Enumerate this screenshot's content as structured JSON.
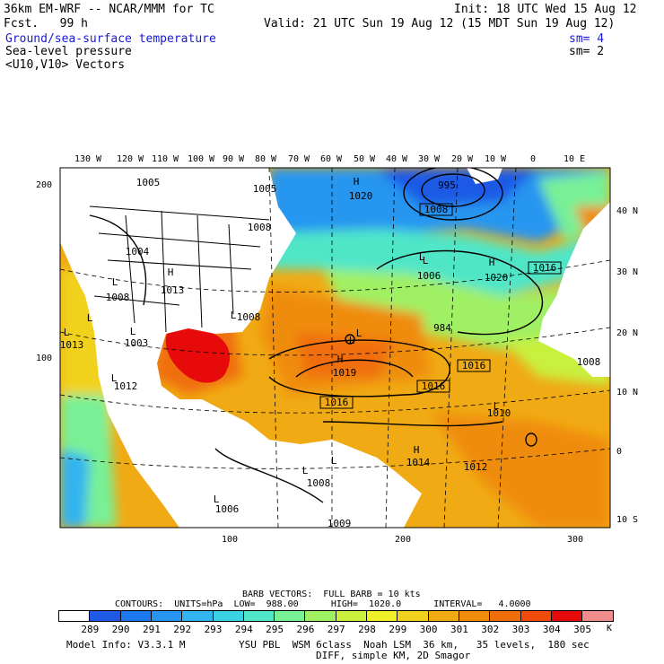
{
  "header": {
    "model_line": "36km EM-WRF -- NCAR/MMM for TC",
    "fcst_line": "Fcst.   99 h",
    "init_line": "Init: 18 UTC Wed 15 Aug 12",
    "valid_line": "Valid: 21 UTC Sun 19 Aug 12 (15 MDT Sun 19 Aug 12)",
    "field1": "Ground/sea-surface temperature",
    "field1_sm": "sm= 4",
    "field2": "Sea-level pressure",
    "field2_sm": "sm= 2",
    "field3": "<U10,V10> Vectors"
  },
  "colors": {
    "field1_text": "#1a1ad0"
  },
  "lon_labels": [
    "130 W",
    "120 W",
    "110 W",
    "100 W",
    "90 W",
    "80 W",
    "70 W",
    "60 W",
    "50 W",
    "40 W",
    "30 W",
    "20 W",
    "10 W",
    "0",
    "10 E"
  ],
  "lat_labels": [
    "40 N",
    "30 N",
    "20 N",
    "10 N",
    "0",
    "10 S"
  ],
  "left_ticks": [
    "200",
    "100"
  ],
  "bottom_ticks": [
    "100",
    "200",
    "300"
  ],
  "pressure_labels": [
    "1005",
    "1005",
    "1008",
    "1020",
    "995",
    "1008",
    "1004",
    "1006",
    "1020",
    "1016",
    "1008",
    "1008",
    "1013",
    "1013",
    "1003",
    "984",
    "1019",
    "1016",
    "1012",
    "1016",
    "1016",
    "1010",
    "1008",
    "1014",
    "1012",
    "1008",
    "1006",
    "1009"
  ],
  "system_labels": [
    "L",
    "H",
    "L",
    "H",
    "L",
    "H",
    "L",
    "L",
    "L",
    "L",
    "H",
    "L",
    "H",
    "L",
    "L",
    "L",
    "L",
    "L",
    "L"
  ],
  "legend": {
    "barb_line": "BARB VECTORS:  FULL BARB = 10 kts",
    "contours_line": "CONTOURS:  UNITS=hPa  LOW=  988.00      HIGH=  1020.0      INTERVAL=   4.0000",
    "unit": "K",
    "colorbar": [
      {
        "label": "289",
        "color": "#ffffff"
      },
      {
        "label": "290",
        "color": "#1e5ae6"
      },
      {
        "label": "291",
        "color": "#1e78f0"
      },
      {
        "label": "292",
        "color": "#2896f0"
      },
      {
        "label": "293",
        "color": "#32b4f0"
      },
      {
        "label": "294",
        "color": "#3cd2e6"
      },
      {
        "label": "295",
        "color": "#50e6c8"
      },
      {
        "label": "296",
        "color": "#78f096"
      },
      {
        "label": "297",
        "color": "#a0f064"
      },
      {
        "label": "298",
        "color": "#c8f03c"
      },
      {
        "label": "299",
        "color": "#f0f028"
      },
      {
        "label": "300",
        "color": "#f0d21e"
      },
      {
        "label": "301",
        "color": "#f0aa14"
      },
      {
        "label": "302",
        "color": "#f08c0a"
      },
      {
        "label": "303",
        "color": "#f06e0a"
      },
      {
        "label": "304",
        "color": "#f04b0a"
      },
      {
        "label": "305",
        "color": "#e60a0a"
      },
      {
        "label": "",
        "color": "#f08c8c"
      }
    ]
  },
  "footer": {
    "line1_left": "Model Info: V3.3.1 M",
    "line1_right": "YSU PBL  WSM 6class  Noah LSM  36 km,   35 levels,  180 sec",
    "line2": "DIFF, simple KM, 2D Smagor"
  }
}
